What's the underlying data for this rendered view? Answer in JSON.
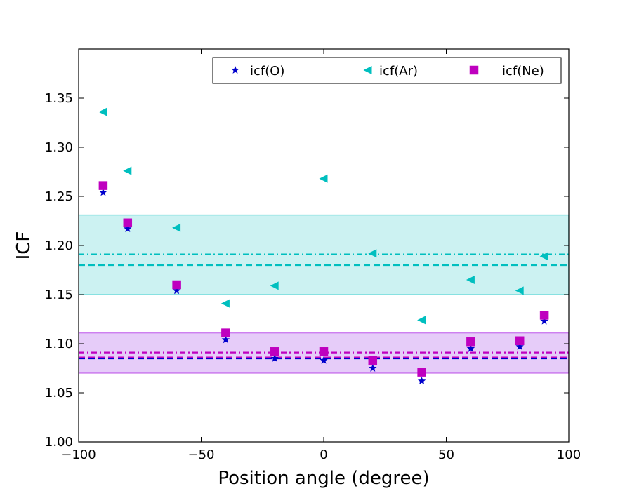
{
  "chart_data": {
    "type": "scatter",
    "title": "",
    "xlabel": "Position angle (degree)",
    "ylabel": "ICF",
    "xlim": [
      -100,
      100
    ],
    "ylim": [
      1.0,
      1.4
    ],
    "xticks": [
      -100,
      -50,
      0,
      50,
      100
    ],
    "xtick_labels": [
      "−100",
      "−50",
      "0",
      "50",
      "100"
    ],
    "yticks": [
      1.0,
      1.05,
      1.1,
      1.15,
      1.2,
      1.25,
      1.3,
      1.35
    ],
    "ytick_labels": [
      "1.00",
      "1.05",
      "1.10",
      "1.15",
      "1.20",
      "1.25",
      "1.30",
      "1.35"
    ],
    "legend_position": "top-right",
    "series": [
      {
        "name": "icf(O)",
        "marker": "star",
        "color": "#0000cc",
        "x": [
          -90,
          -80,
          -60,
          -40,
          -20,
          0,
          20,
          40,
          60,
          80,
          90
        ],
        "y": [
          1.254,
          1.217,
          1.154,
          1.104,
          1.085,
          1.083,
          1.075,
          1.062,
          1.095,
          1.097,
          1.123
        ]
      },
      {
        "name": "icf(Ar)",
        "marker": "triangle-left",
        "color": "#00bfbf",
        "x": [
          -90,
          -80,
          -60,
          -40,
          -20,
          0,
          20,
          40,
          60,
          80,
          90
        ],
        "y": [
          1.336,
          1.276,
          1.218,
          1.141,
          1.159,
          1.268,
          1.192,
          1.124,
          1.165,
          1.154,
          1.189
        ]
      },
      {
        "name": "icf(Ne)",
        "marker": "square",
        "color": "#bf00bf",
        "x": [
          -90,
          -80,
          -60,
          -40,
          -20,
          0,
          20,
          40,
          60,
          80,
          90
        ],
        "y": [
          1.261,
          1.223,
          1.16,
          1.111,
          1.092,
          1.092,
          1.083,
          1.071,
          1.102,
          1.103,
          1.129
        ]
      }
    ],
    "bands": [
      {
        "name": "Ar range",
        "y_min": 1.15,
        "y_max": 1.231,
        "fill": "#00bfbf",
        "stroke": "#00bfbf"
      },
      {
        "name": "O/Ne range",
        "y_min": 1.07,
        "y_max": 1.111,
        "fill": "#8000e0",
        "stroke": "#a000e0"
      }
    ],
    "reference_lines": [
      {
        "name": "Ar dash-dot",
        "y": 1.191,
        "style": "dashdot",
        "color": "#00bfbf"
      },
      {
        "name": "Ar dashed",
        "y": 1.18,
        "style": "dashed",
        "color": "#00bfbf"
      },
      {
        "name": "Ne dash-dot",
        "y": 1.091,
        "style": "dashdot",
        "color": "#bf00bf"
      },
      {
        "name": "O dashed",
        "y": 1.085,
        "style": "dashed",
        "color": "#0000cc"
      },
      {
        "name": "Ne dashed",
        "y": 1.086,
        "style": "dashed",
        "color": "#bf00bf"
      }
    ]
  }
}
